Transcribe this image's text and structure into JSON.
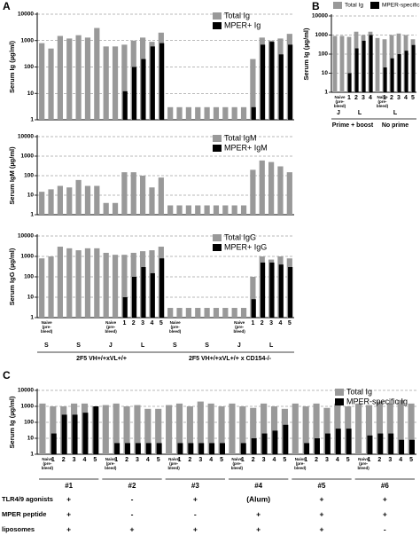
{
  "chart_data": [
    {
      "type": "bar",
      "panel": "A",
      "ylabel": "Serum Ig (µg/ml)",
      "log": true,
      "ylim": [
        1,
        10000
      ],
      "yticks": [
        1,
        10,
        100,
        1000,
        10000
      ],
      "grid": true,
      "legend": "top-right",
      "series": [
        {
          "name": "Total Ig",
          "color": "#999999",
          "values": [
            800,
            500,
            1500,
            1200,
            1600,
            1300,
            3000,
            600,
            600,
            700,
            1000,
            1300,
            900,
            2000,
            3,
            3,
            3,
            3,
            3,
            3,
            3,
            3,
            3,
            200,
            1300,
            1000,
            1200,
            1800
          ]
        },
        {
          "name": "MPER+ Ig",
          "color": "#000000",
          "values": [
            null,
            null,
            null,
            null,
            null,
            null,
            null,
            null,
            null,
            12,
            100,
            200,
            600,
            800,
            null,
            null,
            null,
            null,
            null,
            null,
            null,
            null,
            null,
            3,
            700,
            900,
            300,
            700
          ]
        }
      ]
    },
    {
      "type": "bar",
      "ylabel": "Serum IgM (µg/ml)",
      "log": true,
      "ylim": [
        1,
        10000
      ],
      "yticks": [
        1,
        10,
        100,
        1000,
        10000
      ],
      "grid": true,
      "legend": "top-right",
      "series": [
        {
          "name": "Total IgM",
          "color": "#999999",
          "values": [
            15,
            20,
            30,
            25,
            60,
            30,
            30,
            4,
            4,
            150,
            150,
            100,
            25,
            80,
            3,
            3,
            3,
            3,
            3,
            3,
            3,
            3,
            3,
            200,
            600,
            500,
            300,
            150
          ]
        },
        {
          "name": "MPER+ IgM",
          "color": "#000000",
          "values": [
            null,
            null,
            null,
            null,
            null,
            null,
            null,
            null,
            null,
            null,
            null,
            null,
            null,
            null,
            null,
            null,
            null,
            null,
            null,
            null,
            null,
            null,
            null,
            null,
            null,
            null,
            null,
            null
          ]
        }
      ]
    },
    {
      "type": "bar",
      "ylabel": "Serum IgG (µg/ml)",
      "log": true,
      "ylim": [
        1,
        10000
      ],
      "yticks": [
        1,
        10,
        100,
        1000,
        10000
      ],
      "grid": true,
      "legend": "top-right",
      "categories": [
        "Naive (pre-bleed)",
        null,
        null,
        null,
        null,
        null,
        null,
        "Naive (pre-bleed)",
        null,
        "1",
        "2",
        "3",
        "4",
        "5",
        "Naive (pre-bleed)",
        null,
        null,
        null,
        null,
        null,
        null,
        "Naive (pre-bleed)",
        null,
        "1",
        "2",
        "3",
        "4",
        "5"
      ],
      "annotations": [
        "S",
        "S",
        "J",
        "L",
        "S",
        "S",
        "J",
        "L",
        "2F5 VH+/+xVL+/+",
        "2F5 VH+/+xVL+/+ x CD154-/-"
      ],
      "series": [
        {
          "name": "Total IgG",
          "color": "#999999",
          "values": [
            800,
            1000,
            3000,
            2500,
            2000,
            2500,
            2500,
            1500,
            1200,
            1200,
            1500,
            1800,
            2000,
            3000,
            3,
            3,
            3,
            3,
            3,
            3,
            3,
            3,
            3,
            100,
            1000,
            700,
            1000,
            800
          ]
        },
        {
          "name": "MPER+ IgG",
          "color": "#000000",
          "values": [
            null,
            null,
            null,
            null,
            null,
            null,
            null,
            null,
            null,
            10,
            100,
            300,
            150,
            800,
            null,
            null,
            null,
            null,
            null,
            null,
            null,
            null,
            null,
            8,
            500,
            500,
            400,
            300
          ]
        }
      ]
    },
    {
      "type": "bar",
      "panel": "B",
      "ylabel": "Serum Ig (µg/ml)",
      "log": true,
      "ylim": [
        1,
        10000
      ],
      "yticks": [
        1,
        10,
        100,
        1000,
        10000
      ],
      "grid": true,
      "legend": "top",
      "categories": [
        "Naive (pre-bleed)",
        null,
        "1",
        "2",
        "3",
        "4",
        "Naive (pre-bleed)",
        "1",
        "2",
        "3",
        "4",
        "5"
      ],
      "annotations": [
        "J",
        "L",
        "L",
        "Prime + boost",
        "No prime"
      ],
      "series": [
        {
          "name": "Total Ig",
          "color": "#999999",
          "values": [
            900,
            900,
            800,
            1500,
            1000,
            1500,
            700,
            600,
            1000,
            1200,
            1000,
            600
          ]
        },
        {
          "name": "MPER-specific Ig",
          "color": "#000000",
          "values": [
            null,
            null,
            10,
            200,
            500,
            1000,
            null,
            20,
            60,
            100,
            150,
            300
          ]
        }
      ]
    },
    {
      "type": "bar",
      "panel": "C",
      "ylabel": "Serum Ig (µg/ml)",
      "log": true,
      "ylim": [
        1,
        10000
      ],
      "yticks": [
        1,
        10,
        100,
        1000,
        10000
      ],
      "grid": true,
      "legend": "top-right",
      "categories": [
        "Naive (pre-bleed)",
        "1",
        "2",
        "3",
        "4",
        "5",
        "Naive (pre-bleed)",
        "1",
        "2",
        "3",
        "4",
        "5",
        "Naive (pre-bleed)",
        "1",
        "2",
        "3",
        "4",
        "5",
        "Naive (pre-bleed)",
        "1",
        "2",
        "3",
        "4",
        "5",
        "Naive (pre-bleed)",
        "1",
        "2",
        "3",
        "4",
        "5",
        "Naive (pre-bleed)",
        "1",
        "2",
        "3",
        "4",
        "5"
      ],
      "groups": [
        "#1",
        "#2",
        "#3",
        "#4",
        "#5",
        "#6"
      ],
      "table": {
        "rows": [
          {
            "label": "TLR4/9 agonists",
            "values": [
              "+",
              "-",
              "+",
              "(Alum)",
              "+",
              "+"
            ]
          },
          {
            "label": "MPER peptide",
            "values": [
              "+",
              "-",
              "-",
              "+",
              "+",
              "+"
            ]
          },
          {
            "label": "liposomes",
            "values": [
              "+",
              "+",
              "+",
              "+",
              "+",
              "-"
            ]
          }
        ]
      },
      "series": [
        {
          "name": "Total Ig",
          "color": "#999999",
          "values": [
            1500,
            1000,
            1000,
            1500,
            1500,
            1000,
            1200,
            1500,
            1000,
            1200,
            700,
            700,
            1200,
            1500,
            1000,
            2000,
            1500,
            1000,
            1500,
            1000,
            800,
            1500,
            1000,
            700,
            1500,
            1000,
            1500,
            800,
            1500,
            1000,
            1500,
            1200,
            2000,
            1500,
            2500,
            1500
          ]
        },
        {
          "name": "MPER-specific Ig",
          "color": "#000000",
          "values": [
            null,
            20,
            300,
            300,
            400,
            1000,
            null,
            5,
            5,
            5,
            5,
            5,
            null,
            5,
            5,
            5,
            5,
            5,
            null,
            5,
            10,
            20,
            30,
            70,
            null,
            5,
            10,
            20,
            40,
            40,
            null,
            15,
            20,
            20,
            8,
            8
          ]
        }
      ]
    }
  ]
}
